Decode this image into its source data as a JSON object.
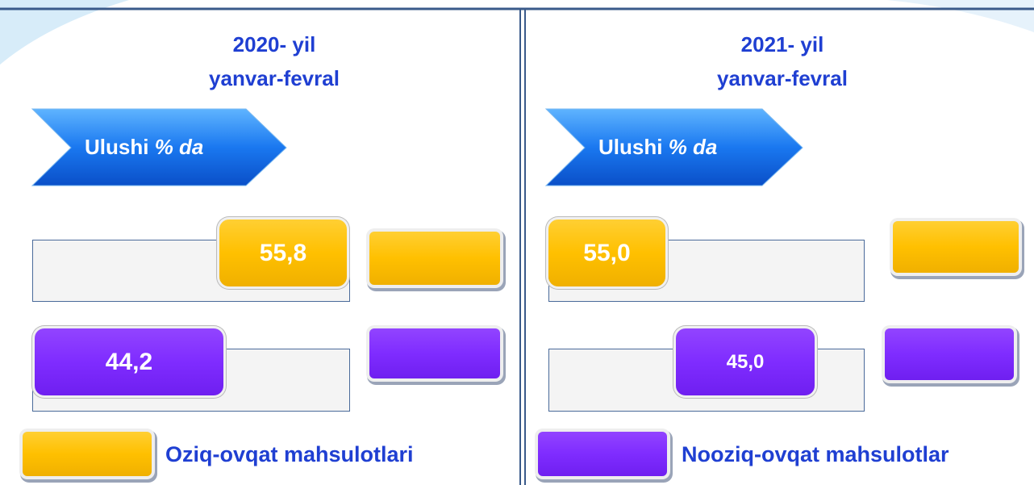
{
  "panels": [
    {
      "title": [
        "2020- yil",
        "yanvar-fevral"
      ],
      "badge": {
        "label": "Ulushi",
        "unit": "% da"
      },
      "rows": [
        {
          "value": "55,8"
        },
        {
          "value": "44,2"
        }
      ]
    },
    {
      "title": [
        "2021- yil",
        "yanvar-fevral"
      ],
      "badge": {
        "label": "Ulushi",
        "unit": "% da"
      },
      "rows": [
        {
          "value": "55,0"
        },
        {
          "value": "45,0"
        }
      ]
    }
  ],
  "legend": [
    "Oziq-ovqat mahsulotlari",
    "Nooziq-ovqat mahsulotlar"
  ]
}
